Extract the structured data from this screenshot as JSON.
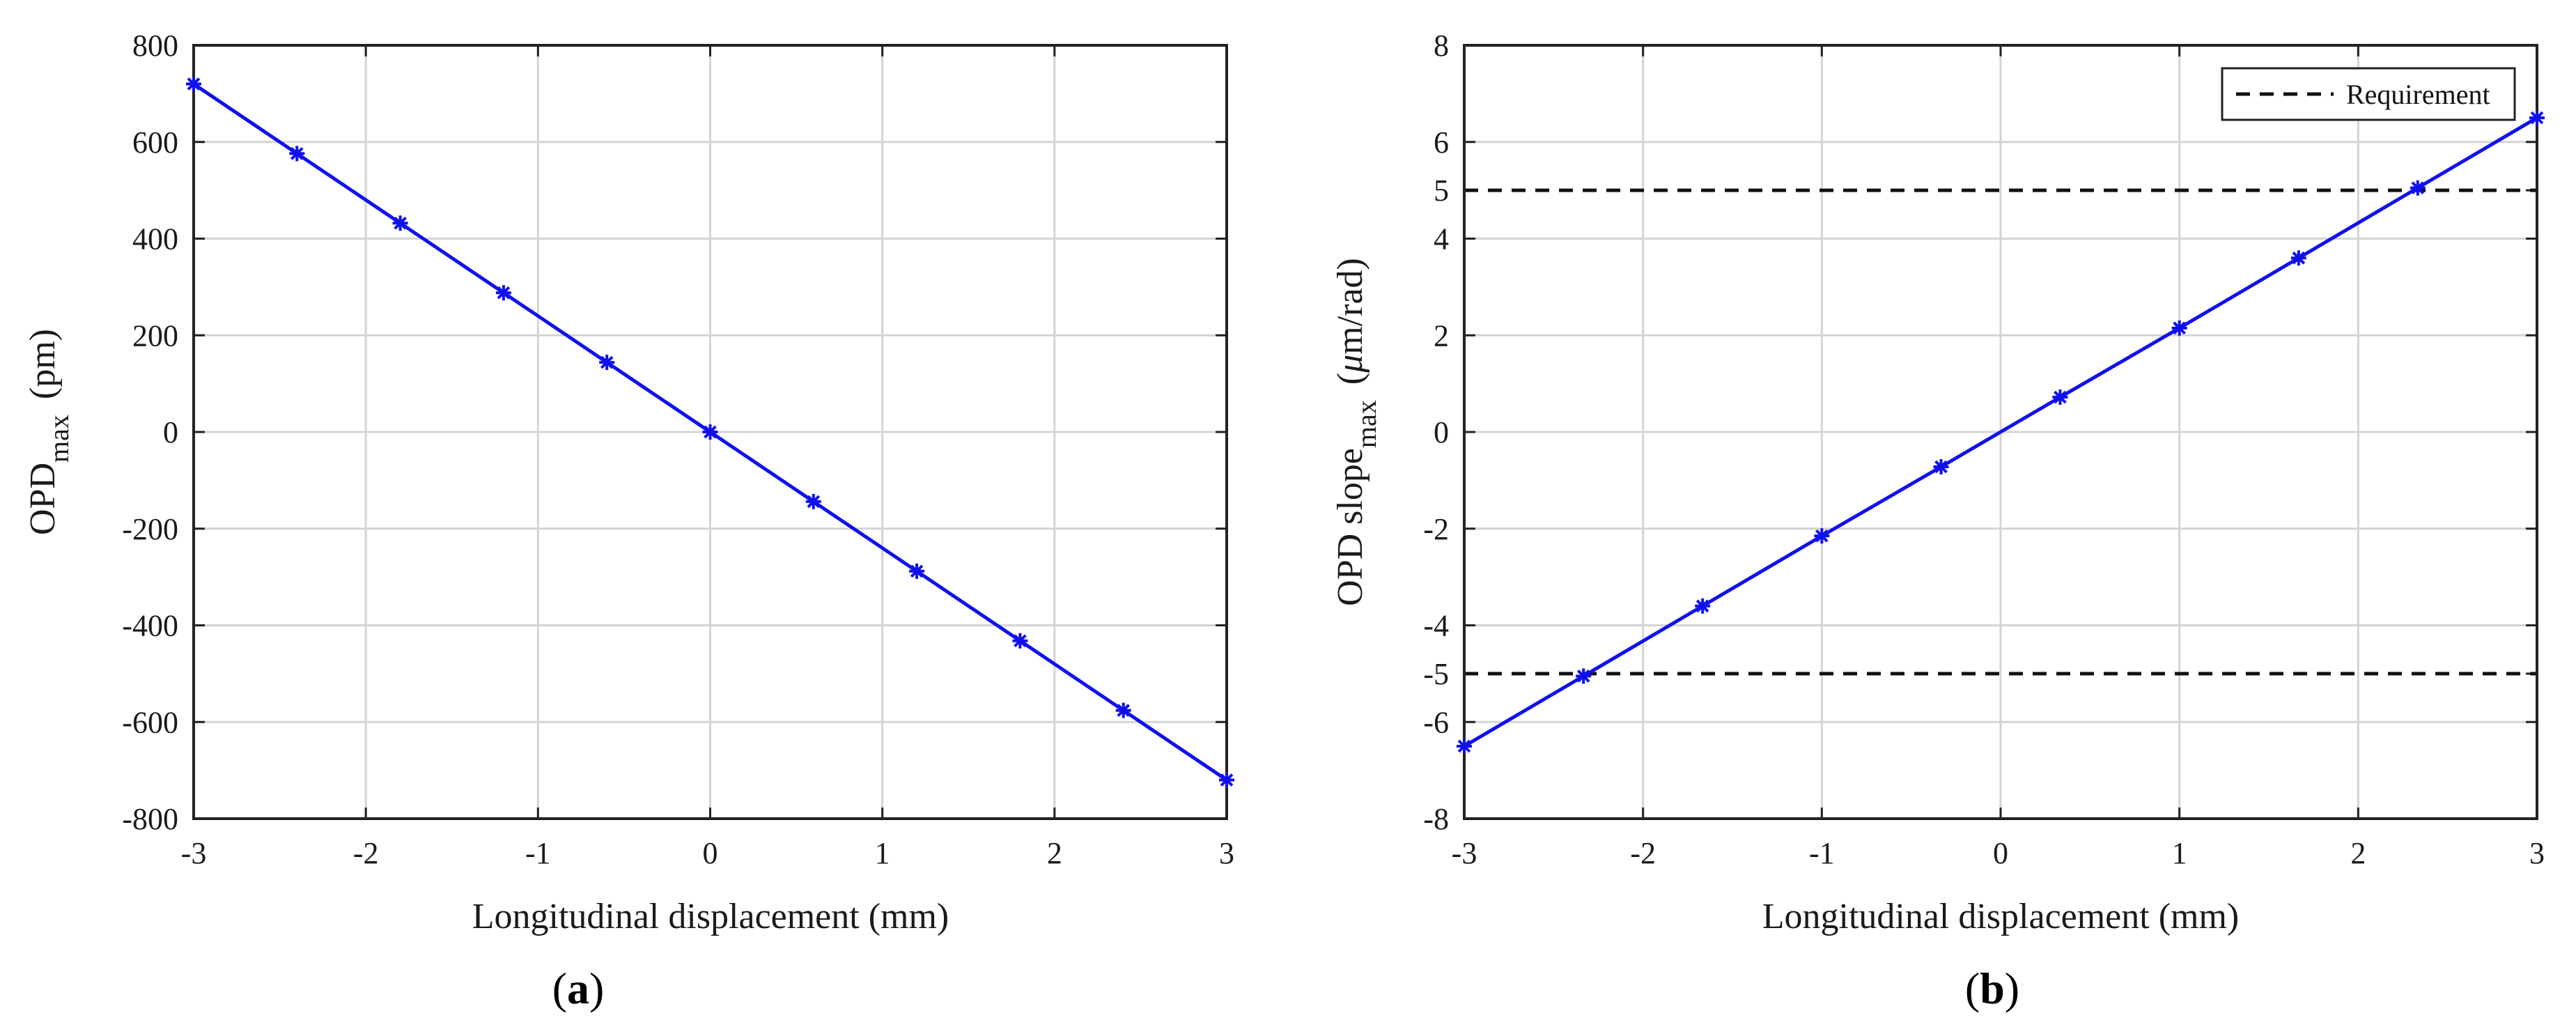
{
  "chart_data": [
    {
      "type": "line",
      "panel_label": "a",
      "title": "",
      "xlabel": "Longitudinal displacement (mm)",
      "ylabel_main": "OPD",
      "ylabel_sub": "max",
      "ylabel_unit": "(pm)",
      "xlim": [
        -3,
        3
      ],
      "ylim": [
        -800,
        800
      ],
      "xticks": [
        -3,
        -2,
        -1,
        0,
        1,
        2,
        3
      ],
      "yticks": [
        -800,
        -600,
        -400,
        -200,
        0,
        200,
        400,
        600,
        800
      ],
      "grid": true,
      "series": [
        {
          "color": "#1010ee",
          "marker": "asterisk",
          "x": [
            -3,
            -2.4,
            -1.8,
            -1.2,
            -0.6,
            0,
            0.6,
            1.2,
            1.8,
            2.4,
            3
          ],
          "y": [
            720,
            576,
            432,
            288,
            144,
            0,
            -144,
            -288,
            -432,
            -576,
            -720
          ]
        }
      ]
    },
    {
      "type": "line",
      "panel_label": "b",
      "title": "",
      "xlabel": "Longitudinal displacement (mm)",
      "ylabel_main": "OPD slope",
      "ylabel_sub": "max",
      "ylabel_unit_mu": "μ",
      "ylabel_unit_rest": "m/rad)",
      "xlim": [
        -3,
        3
      ],
      "ylim": [
        -8,
        8
      ],
      "xticks": [
        -3,
        -2,
        -1,
        0,
        1,
        2,
        3
      ],
      "yticks": [
        -8,
        -6,
        -5,
        -4,
        -2,
        0,
        2,
        4,
        5,
        6,
        8
      ],
      "grid_y": [
        -8,
        -6,
        -4,
        -2,
        0,
        2,
        4,
        6,
        8
      ],
      "grid": true,
      "legend": {
        "position": "top-right",
        "entries": [
          {
            "label": "Requirement",
            "style": "dashed",
            "color": "#111111"
          }
        ]
      },
      "reference_lines": [
        5,
        -5
      ],
      "series": [
        {
          "color": "#1010ee",
          "marker": "asterisk",
          "x": [
            -3,
            -2.333,
            -1.667,
            -1,
            -0.333,
            0.333,
            1,
            1.667,
            2.333,
            3
          ],
          "y": [
            -6.5,
            -5.05,
            -3.6,
            -2.15,
            -0.72,
            0.72,
            2.15,
            3.6,
            5.05,
            6.5
          ]
        }
      ]
    }
  ]
}
